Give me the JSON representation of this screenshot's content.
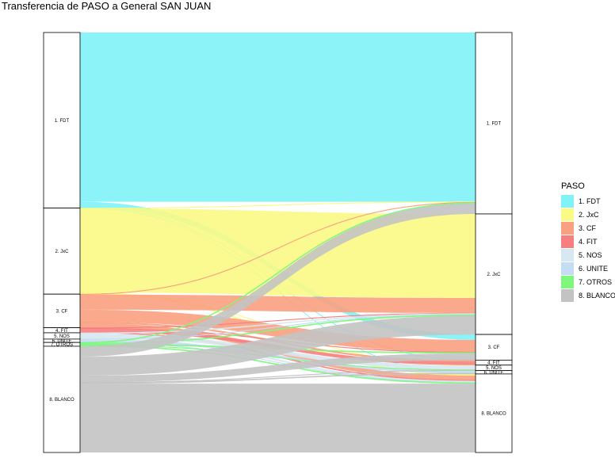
{
  "title": "Transferencia de PASO a General SAN JUAN",
  "legend": {
    "title": "PASO",
    "items": [
      {
        "label": "1. FDT",
        "color": "#80F2F8"
      },
      {
        "label": "2. JxC",
        "color": "#FAFA85"
      },
      {
        "label": "3. CF",
        "color": "#F9A080"
      },
      {
        "label": "4. FIT",
        "color": "#F77F7F"
      },
      {
        "label": "5. NOS",
        "color": "#D7E8F0"
      },
      {
        "label": "6. UNITE",
        "color": "#C5DDF3"
      },
      {
        "label": "7. OTROS",
        "color": "#7FF77F"
      },
      {
        "label": "8. BLANCO",
        "color": "#C3C3C3"
      }
    ]
  },
  "chart_data": {
    "type": "sankey",
    "title": "Transferencia de PASO a General SAN JUAN",
    "left_axis": "PASO",
    "right_axis": "General",
    "left_nodes": [
      {
        "label": "1. FDT",
        "value": 41.8
      },
      {
        "label": "2. JxC",
        "value": 20.5
      },
      {
        "label": "3. CF",
        "value": 8.0
      },
      {
        "label": "4. FIT",
        "value": 1.2
      },
      {
        "label": "5. NOS",
        "value": 1.5
      },
      {
        "label": "6. UNITE",
        "value": 0.8
      },
      {
        "label": "7. OTROS",
        "value": 0.9
      },
      {
        "label": "8. BLANCO",
        "value": 25.3
      }
    ],
    "right_nodes": [
      {
        "label": "1. FDT",
        "value": 43.2
      },
      {
        "label": "2. JxC",
        "value": 28.7
      },
      {
        "label": "3. CF",
        "value": 6.1
      },
      {
        "label": "4. FIT",
        "value": 1.2
      },
      {
        "label": "5. NOS",
        "value": 1.3
      },
      {
        "label": "6. UNITE",
        "value": 0.8
      },
      {
        "label": "8. BLANCO",
        "value": 18.7
      }
    ],
    "flows": [
      {
        "from": "1. FDT",
        "to": "1. FDT",
        "value": 40.3
      },
      {
        "from": "1. FDT",
        "to": "3. CF",
        "value": 1.3
      },
      {
        "from": "1. FDT",
        "to": "4. FIT",
        "value": 0.1
      },
      {
        "from": "1. FDT",
        "to": "8. BLANCO",
        "value": 0.1
      },
      {
        "from": "2. JxC",
        "to": "1. FDT",
        "value": 0.1
      },
      {
        "from": "2. JxC",
        "to": "2. JxC",
        "value": 20.0
      },
      {
        "from": "2. JxC",
        "to": "5. NOS",
        "value": 0.1
      },
      {
        "from": "2. JxC",
        "to": "8. BLANCO",
        "value": 0.3
      },
      {
        "from": "3. CF",
        "to": "1. FDT",
        "value": 0.1
      },
      {
        "from": "3. CF",
        "to": "2. JxC",
        "value": 3.6
      },
      {
        "from": "3. CF",
        "to": "3. CF",
        "value": 2.9
      },
      {
        "from": "3. CF",
        "to": "4. FIT",
        "value": 0.3
      },
      {
        "from": "3. CF",
        "to": "8. BLANCO",
        "value": 1.1
      },
      {
        "from": "4. FIT",
        "to": "2. JxC",
        "value": 0.1
      },
      {
        "from": "4. FIT",
        "to": "3. CF",
        "value": 0.1
      },
      {
        "from": "4. FIT",
        "to": "4. FIT",
        "value": 0.8
      },
      {
        "from": "4. FIT",
        "to": "8. BLANCO",
        "value": 0.2
      },
      {
        "from": "5. NOS",
        "to": "2. JxC",
        "value": 0.2
      },
      {
        "from": "5. NOS",
        "to": "5. NOS",
        "value": 1.0
      },
      {
        "from": "5. NOS",
        "to": "8. BLANCO",
        "value": 0.3
      },
      {
        "from": "6. UNITE",
        "to": "2. JxC",
        "value": 0.1
      },
      {
        "from": "6. UNITE",
        "to": "6. UNITE",
        "value": 0.6
      },
      {
        "from": "6. UNITE",
        "to": "8. BLANCO",
        "value": 0.1
      },
      {
        "from": "7. OTROS",
        "to": "1. FDT",
        "value": 0.2
      },
      {
        "from": "7. OTROS",
        "to": "2. JxC",
        "value": 0.2
      },
      {
        "from": "7. OTROS",
        "to": "3. CF",
        "value": 0.2
      },
      {
        "from": "7. OTROS",
        "to": "5. NOS",
        "value": 0.1
      },
      {
        "from": "7. OTROS",
        "to": "8. BLANCO",
        "value": 0.2
      },
      {
        "from": "8. BLANCO",
        "to": "1. FDT",
        "value": 2.5
      },
      {
        "from": "8. BLANCO",
        "to": "2. JxC",
        "value": 4.5
      },
      {
        "from": "8. BLANCO",
        "to": "3. CF",
        "value": 1.6
      },
      {
        "from": "8. BLANCO",
        "to": "5. NOS",
        "value": 0.1
      },
      {
        "from": "8. BLANCO",
        "to": "6. UNITE",
        "value": 0.2
      },
      {
        "from": "8. BLANCO",
        "to": "8. BLANCO",
        "value": 16.4
      }
    ]
  }
}
